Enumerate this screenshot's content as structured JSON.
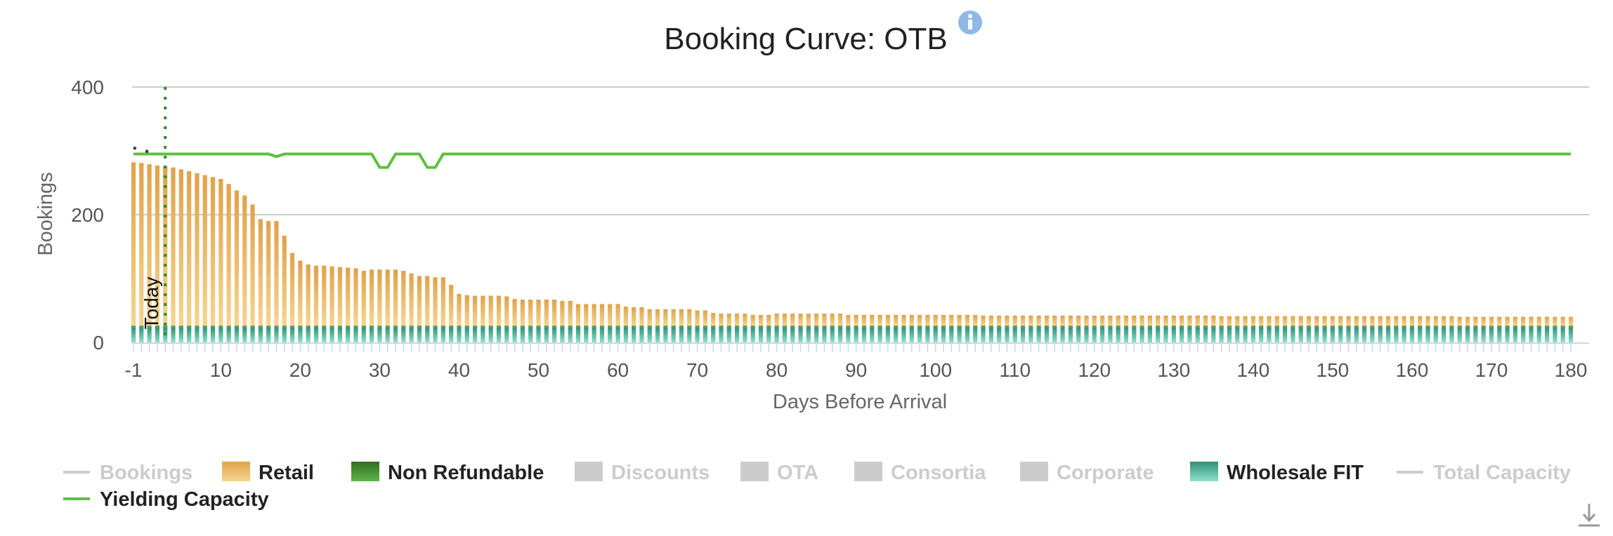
{
  "chart_data": {
    "type": "bar",
    "title": "Booking Curve: OTB",
    "xlabel": "Days Before Arrival",
    "ylabel": "Bookings",
    "ylim": [
      0,
      400
    ],
    "yticks": [
      0,
      200,
      400
    ],
    "xlim": [
      -1,
      180
    ],
    "xticks": [
      -1,
      10,
      20,
      30,
      40,
      50,
      60,
      70,
      80,
      90,
      100,
      110,
      120,
      130,
      140,
      150,
      160,
      170,
      180
    ],
    "stacked": true,
    "annotation": {
      "label": "Today",
      "x": 3
    },
    "info_icon": "info-icon",
    "download_icon": "download-icon",
    "legend_placement": "bottom",
    "legend": [
      {
        "name": "Bookings",
        "type": "line",
        "visible": false,
        "color": "#cccccc"
      },
      {
        "name": "Retail",
        "type": "bar",
        "visible": true,
        "color": "#e4ad5a"
      },
      {
        "name": "Non Refundable",
        "type": "bar",
        "visible": true,
        "color": "#3f8f2f"
      },
      {
        "name": "Discounts",
        "type": "bar",
        "visible": false,
        "color": "#cccccc"
      },
      {
        "name": "OTA",
        "type": "bar",
        "visible": false,
        "color": "#cccccc"
      },
      {
        "name": "Consortia",
        "type": "bar",
        "visible": false,
        "color": "#cccccc"
      },
      {
        "name": "Corporate",
        "type": "bar",
        "visible": false,
        "color": "#cccccc"
      },
      {
        "name": "Wholesale FIT",
        "type": "bar",
        "visible": true,
        "color": "#3aa888"
      },
      {
        "name": "Total Capacity",
        "type": "line",
        "visible": false,
        "color": "#cccccc"
      },
      {
        "name": "Yielding Capacity",
        "type": "line",
        "visible": true,
        "color": "#5cc041"
      }
    ],
    "series_values": {
      "Wholesale FIT": {
        "constant": 24,
        "x_range": [
          -1,
          180
        ]
      },
      "Non Refundable": {
        "constant": 2,
        "x_range": [
          -1,
          180
        ]
      },
      "Retail": {
        "x": [
          -1,
          0,
          1,
          2,
          3,
          4,
          5,
          6,
          7,
          8,
          9,
          10,
          11,
          12,
          13,
          14,
          15,
          16,
          17,
          18,
          19,
          20,
          21,
          22,
          23,
          24,
          25,
          26,
          27,
          28,
          29,
          30,
          31,
          32,
          33,
          34,
          35,
          36,
          37,
          38,
          39,
          40,
          41,
          42,
          43,
          44,
          45,
          46,
          47,
          48,
          49,
          50,
          51,
          52,
          53,
          54,
          55,
          56,
          57,
          58,
          59,
          60,
          61,
          62,
          63,
          64,
          65,
          66,
          67,
          68,
          69,
          70,
          71,
          72,
          73,
          74,
          75,
          76,
          77,
          78,
          79,
          80,
          81,
          82,
          83,
          84,
          85,
          86,
          87,
          88,
          89,
          90,
          180
        ],
        "total": [
          282,
          281,
          279,
          277,
          276,
          274,
          271,
          268,
          265,
          262,
          259,
          256,
          248,
          238,
          230,
          216,
          193,
          190,
          190,
          167,
          140,
          128,
          122,
          120,
          120,
          119,
          118,
          117,
          116,
          112,
          114,
          114,
          114,
          114,
          112,
          108,
          104,
          104,
          102,
          102,
          90,
          76,
          74,
          73,
          73,
          73,
          73,
          72,
          68,
          67,
          67,
          67,
          67,
          67,
          65,
          65,
          60,
          60,
          60,
          60,
          60,
          60,
          56,
          55,
          55,
          52,
          52,
          52,
          52,
          52,
          52,
          50,
          50,
          46,
          45,
          45,
          45,
          45,
          43,
          43,
          43,
          45,
          45,
          45,
          45,
          45,
          45,
          45,
          45,
          45,
          43,
          43,
          40
        ]
      },
      "Bookings": {
        "x": [
          -1,
          0,
          1,
          2
        ],
        "values": [
          305,
          300,
          299,
          298
        ]
      },
      "Yielding Capacity": {
        "x": [
          -1,
          16,
          17,
          18,
          29,
          30,
          31,
          32,
          35,
          36,
          37,
          38,
          180
        ],
        "values": [
          295,
          295,
          291,
          295,
          295,
          274,
          274,
          295,
          295,
          274,
          274,
          295,
          295
        ]
      }
    }
  }
}
